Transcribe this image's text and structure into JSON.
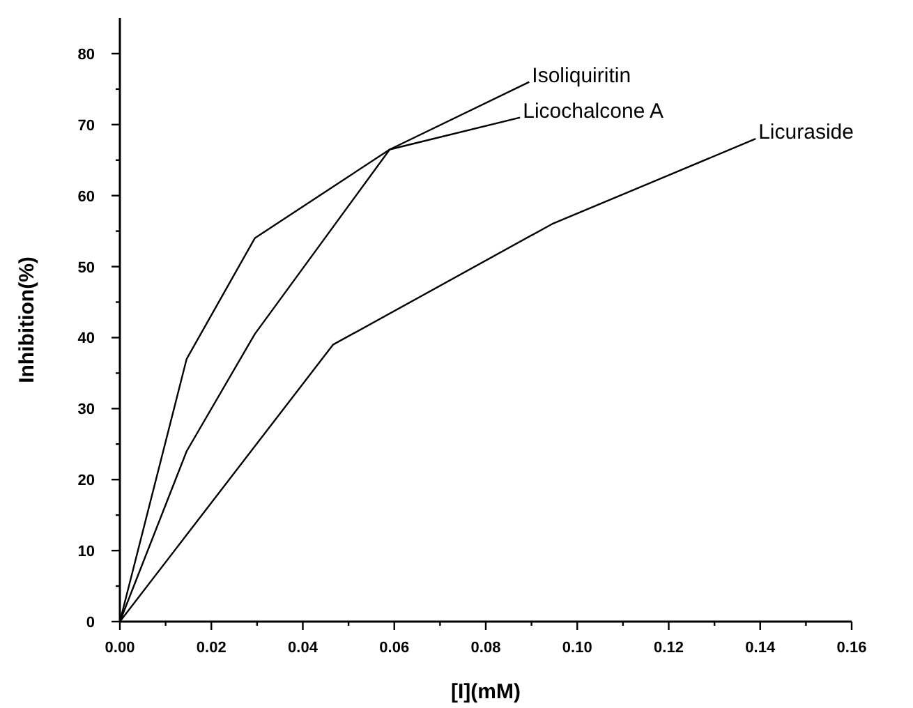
{
  "chart_data": {
    "type": "line",
    "xlabel": "[I](mM)",
    "ylabel": "Inhibition(%)",
    "xlim": [
      0,
      0.16
    ],
    "ylim": [
      0,
      85
    ],
    "xticks": [
      {
        "value": 0,
        "label": "0.00"
      },
      {
        "value": 0.01,
        "label": null
      },
      {
        "value": 0.02,
        "label": "0.02"
      },
      {
        "value": 0.03,
        "label": null
      },
      {
        "value": 0.04,
        "label": "0.04"
      },
      {
        "value": 0.05,
        "label": null
      },
      {
        "value": 0.06,
        "label": "0.06"
      },
      {
        "value": 0.07,
        "label": null
      },
      {
        "value": 0.08,
        "label": "0.08"
      },
      {
        "value": 0.09,
        "label": null
      },
      {
        "value": 0.1,
        "label": "0.10"
      },
      {
        "value": 0.11,
        "label": null
      },
      {
        "value": 0.12,
        "label": "0.12"
      },
      {
        "value": 0.13,
        "label": null
      },
      {
        "value": 0.14,
        "label": "0.14"
      },
      {
        "value": 0.15,
        "label": null
      },
      {
        "value": 0.16,
        "label": "0.16"
      }
    ],
    "yticks": [
      0,
      {
        "value": 5,
        "label": null
      },
      10,
      {
        "value": 15,
        "label": null
      },
      20,
      {
        "value": 25,
        "label": null
      },
      30,
      {
        "value": 35,
        "label": null
      },
      40,
      {
        "value": 45,
        "label": null
      },
      50,
      {
        "value": 55,
        "label": null
      },
      60,
      {
        "value": 65,
        "label": null
      },
      70,
      {
        "value": 75,
        "label": null
      },
      80
    ],
    "grid": false,
    "marker": "none",
    "line_style": "solid",
    "series": [
      {
        "name": "Isoliquiritin",
        "color": "#000000",
        "x": [
          0,
          0.0146,
          0.0295,
          0.059,
          0.0895
        ],
        "values": [
          0,
          37,
          54,
          66.5,
          76
        ]
      },
      {
        "name": "Licochalcone A",
        "color": "#000000",
        "x": [
          0,
          0.0146,
          0.0295,
          0.059,
          0.0875
        ],
        "values": [
          0,
          24,
          40.5,
          66.5,
          71
        ]
      },
      {
        "name": "Licuraside",
        "color": "#000000",
        "x": [
          0,
          0.0466,
          0.0945,
          0.139
        ],
        "values": [
          0,
          39,
          56,
          68
        ]
      }
    ]
  }
}
